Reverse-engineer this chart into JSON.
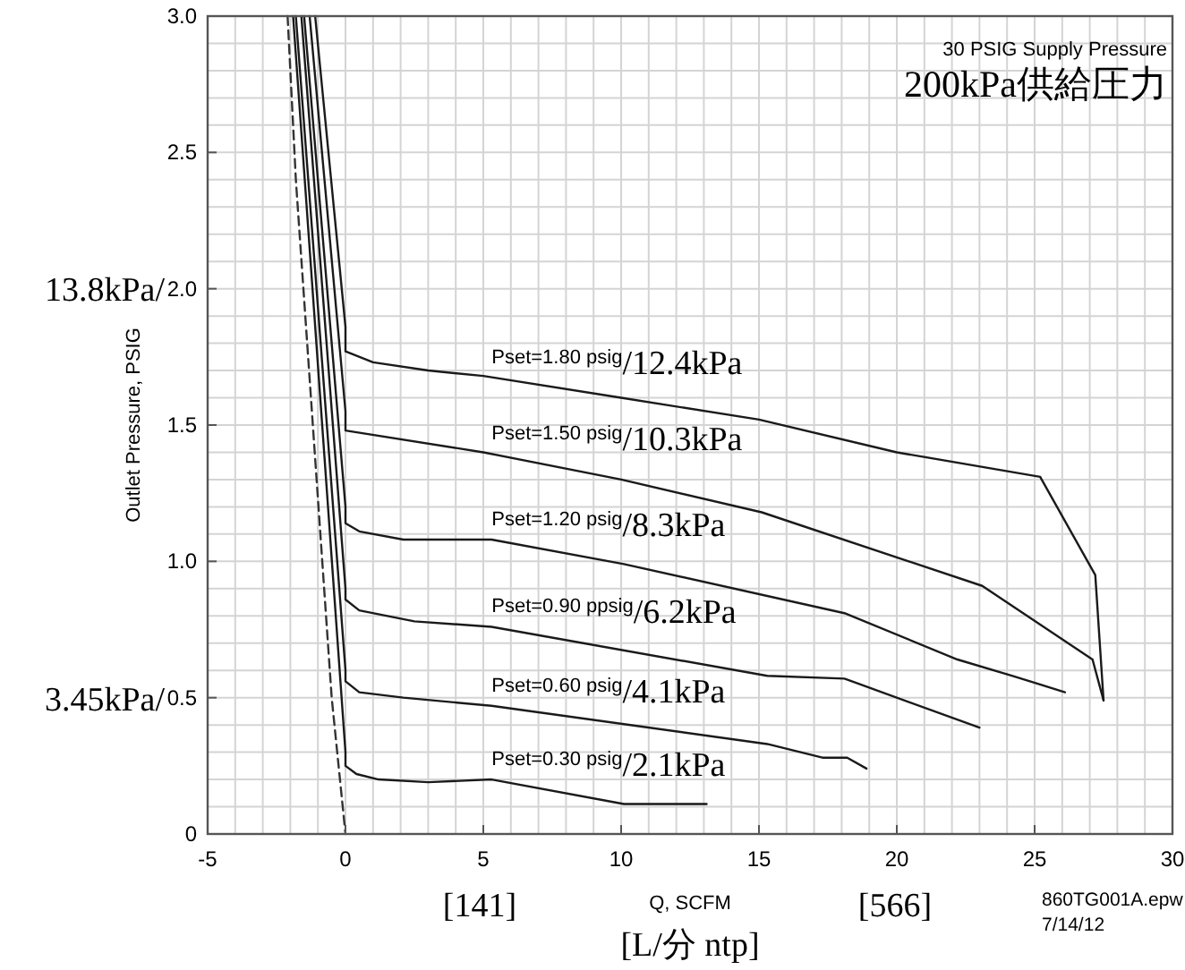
{
  "chart_data": {
    "type": "line",
    "title": "30 PSIG Supply Pressure",
    "subtitle": "200kPa供給圧力",
    "xlabel": "Q, SCFM\n[L/分 ntp]",
    "ylabel": "Outlet Pressure, PSIG",
    "annotations": [
      "860TG001A.epw\n7/14/12",
      "[141]",
      "[566]",
      "13.8kPa/",
      "3.45kPa/"
    ],
    "xlim": [
      -5,
      30
    ],
    "ylim": [
      0,
      3
    ],
    "xticks": [
      -5,
      0,
      5,
      10,
      15,
      20,
      25,
      30
    ],
    "yticks": [
      0,
      0.5,
      {
        "value": 1,
        "label": "1.0"
      },
      1.5,
      {
        "value": 2,
        "label": "2.0"
      },
      2.5,
      {
        "value": 3,
        "label": "3.0"
      }
    ],
    "grid": true,
    "legend": false,
    "marker": "none",
    "series": [
      {
        "name": "Pset=1.80 psig/12.4kPa",
        "color": "#1a1a1a",
        "x": [
          -1.1,
          0,
          0,
          1,
          3,
          5,
          10,
          15,
          20,
          25.2,
          27.2,
          27.5
        ],
        "values": [
          3.0,
          1.86,
          1.77,
          1.73,
          1.7,
          1.68,
          1.6,
          1.52,
          1.4,
          1.31,
          0.95,
          0.49
        ]
      },
      {
        "name": "Pset=1.50 psig/10.3kPa",
        "color": "#1a1a1a",
        "x": [
          -1.3,
          0,
          0,
          5,
          10,
          15.1,
          23.1,
          27.1,
          27.5
        ],
        "values": [
          3.0,
          1.55,
          1.48,
          1.4,
          1.3,
          1.18,
          0.91,
          0.64,
          0.49
        ]
      },
      {
        "name": "Pset=1.20 psig/8.3kPa",
        "color": "#1a1a1a",
        "x": [
          -1.5,
          0,
          0,
          0.5,
          2.1,
          5.3,
          10.1,
          18.1,
          22.2,
          24.2,
          26.1
        ],
        "values": [
          3.0,
          1.2,
          1.14,
          1.11,
          1.08,
          1.08,
          0.99,
          0.81,
          0.64,
          0.58,
          0.52
        ]
      },
      {
        "name": "Pset=0.90 ppsig/6.2kPa",
        "color": "#1a1a1a",
        "x": [
          -1.6,
          0,
          0,
          0.5,
          2.5,
          5.3,
          15.3,
          18.1,
          23.0
        ],
        "values": [
          3.0,
          0.9,
          0.86,
          0.82,
          0.78,
          0.76,
          0.58,
          0.57,
          0.39
        ]
      },
      {
        "name": "Pset=0.60 psig/4.1kPa",
        "color": "#1a1a1a",
        "x": [
          -1.8,
          0,
          0,
          0.5,
          2.1,
          5.3,
          15.3,
          17.3,
          18.2,
          18.9
        ],
        "values": [
          3.0,
          0.6,
          0.56,
          0.52,
          0.5,
          0.47,
          0.33,
          0.28,
          0.28,
          0.24
        ]
      },
      {
        "name": "Pset=0.30 psig/2.1kPa",
        "color": "#1a1a1a",
        "x": [
          -1.9,
          0,
          0,
          0.4,
          1.2,
          3.0,
          5.3,
          10.1,
          13.1
        ],
        "values": [
          3.0,
          0.3,
          0.25,
          0.22,
          0.2,
          0.19,
          0.2,
          0.11,
          0.11
        ]
      },
      {
        "color": "#333333",
        "line_style": "dashed",
        "x": [
          -2.1,
          -1.8,
          -0.5,
          0
        ],
        "values": [
          3.0,
          2.4,
          0.5,
          0.0
        ]
      }
    ]
  }
}
